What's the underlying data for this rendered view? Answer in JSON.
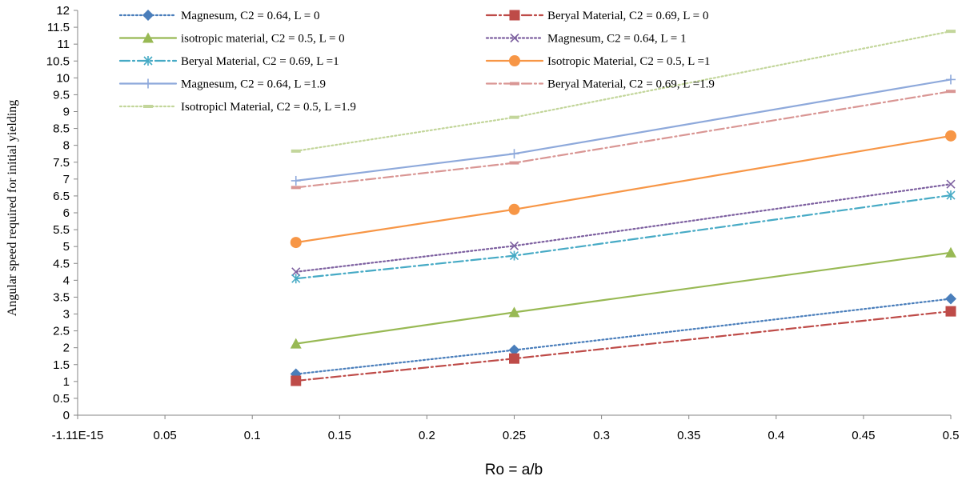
{
  "chart_data": {
    "type": "line",
    "xlabel": "Ro  = a/b",
    "ylabel": "Angular speed required for initial yielding",
    "xlim": [
      0,
      0.5
    ],
    "ylim": [
      0,
      12
    ],
    "x_tick_labels": [
      "-1.11E-15",
      "0.05",
      "0.1",
      "0.15",
      "0.2",
      "0.25",
      "0.3",
      "0.35",
      "0.4",
      "0.45",
      "0.5"
    ],
    "y_tick_labels": [
      "0",
      "0.5",
      "1",
      "1.5",
      "2",
      "2.5",
      "3",
      "3.5",
      "4",
      "4.5",
      "5",
      "5.5",
      "6",
      "6.5",
      "7",
      "7.5",
      "8",
      "8.5",
      "9",
      "9.5",
      "10",
      "10.5",
      "11",
      "11.5",
      "12"
    ],
    "x": [
      0.125,
      0.25,
      0.5
    ],
    "legend_position": "top",
    "grid": false,
    "series": [
      {
        "name": "Magnesum, C2 = 0.64, L = 0",
        "values": [
          1.22,
          1.93,
          3.45
        ],
        "color": "#4A7EBB",
        "dash": "dot",
        "marker": "diamond"
      },
      {
        "name": "Beryal Material, C2 = 0.69, L = 0",
        "values": [
          1.02,
          1.68,
          3.08
        ],
        "color": "#BE4B48",
        "dash": "dashdot",
        "marker": "square"
      },
      {
        "name": "isotropic material, C2 = 0.5, L = 0",
        "values": [
          2.12,
          3.05,
          4.82
        ],
        "color": "#98B954",
        "dash": "solid",
        "marker": "triangle"
      },
      {
        "name": "Magnesum, C2 = 0.64, L = 1",
        "values": [
          4.25,
          5.02,
          6.85
        ],
        "color": "#7D60A0",
        "dash": "dot",
        "marker": "x"
      },
      {
        "name": "Beryal Material, C2 = 0.69, L =1",
        "values": [
          4.05,
          4.73,
          6.52
        ],
        "color": "#46AAC5",
        "dash": "dashdot",
        "marker": "asterisk"
      },
      {
        "name": "Isotropic Material, C2 = 0.5, L =1",
        "values": [
          5.12,
          6.1,
          8.28
        ],
        "color": "#F79646",
        "dash": "solid",
        "marker": "circle"
      },
      {
        "name": "Magnesum, C2 = 0.64, L =1.9",
        "values": [
          6.95,
          7.75,
          9.95
        ],
        "color": "#8EA9DB",
        "dash": "solid",
        "marker": "plus"
      },
      {
        "name": "Beryal Material, C2 = 0.69, L =1.9",
        "values": [
          6.75,
          7.48,
          9.6
        ],
        "color": "#D99694",
        "dash": "dashdot",
        "marker": "dash"
      },
      {
        "name": "Isotropicl Material, C2 = 0.5, L =1.9",
        "values": [
          7.83,
          8.83,
          11.38
        ],
        "color": "#C3D69B",
        "dash": "dot",
        "marker": "dash"
      }
    ]
  }
}
